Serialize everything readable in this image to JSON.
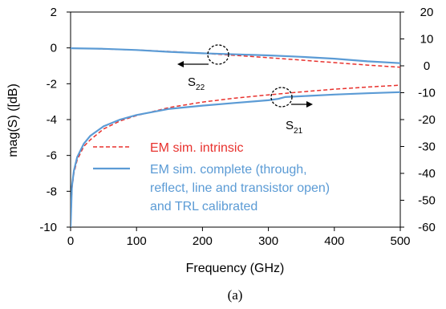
{
  "chart_data": {
    "type": "line",
    "xlabel": "Frequency (GHz)",
    "ylabel": "mag(S) ([dB)",
    "caption": "(a)",
    "xlim": [
      0,
      500
    ],
    "ylim": [
      -10,
      2
    ],
    "y2lim": [
      -60,
      20
    ],
    "xticks": [
      "0",
      "100",
      "200",
      "300",
      "400",
      "500"
    ],
    "yticks": [
      "2",
      "0",
      "-2",
      "-4",
      "-6",
      "-8",
      "-10"
    ],
    "y2ticks": [
      "20",
      "10",
      "0",
      "-10",
      "-20",
      "-30",
      "-40",
      "-50",
      "-60"
    ],
    "grid": false,
    "legend": [
      {
        "label": "EM sim. intrinsic",
        "color": "#e8322e",
        "dash": true
      },
      {
        "label_lines": [
          "EM sim.  complete (through,",
          "reflect, line and transistor open)",
          "and TRL  calibrated"
        ],
        "color": "#5b9bd5",
        "dash": false
      }
    ],
    "annotations": {
      "s22": {
        "main": "S",
        "sub": "22"
      },
      "s21": {
        "main": "S",
        "sub": "21"
      }
    },
    "series": [
      {
        "name": "EM sim. intrinsic (S22)",
        "axis": "left",
        "color": "#e8322e",
        "dash": true,
        "x": [
          0,
          50,
          100,
          150,
          200,
          250,
          300,
          350,
          400,
          450,
          500
        ],
        "y": [
          -0.02,
          -0.06,
          -0.12,
          -0.2,
          -0.3,
          -0.42,
          -0.55,
          -0.68,
          -0.82,
          -0.96,
          -1.08
        ]
      },
      {
        "name": "EM sim. complete (S22)",
        "axis": "left",
        "color": "#5b9bd5",
        "dash": false,
        "x": [
          0,
          50,
          100,
          150,
          200,
          250,
          300,
          350,
          400,
          450,
          500
        ],
        "y": [
          -0.02,
          -0.05,
          -0.12,
          -0.22,
          -0.3,
          -0.36,
          -0.42,
          -0.5,
          -0.6,
          -0.75,
          -0.85
        ]
      },
      {
        "name": "EM sim. intrinsic (S21)",
        "axis": "right",
        "color": "#e8322e",
        "dash": true,
        "x": [
          0,
          2,
          5,
          10,
          20,
          30,
          50,
          75,
          100,
          150,
          200,
          250,
          300,
          350,
          400,
          450,
          500
        ],
        "y": [
          -60,
          -46,
          -40,
          -35,
          -30,
          -27.5,
          -23.5,
          -20.5,
          -18.5,
          -15.5,
          -13.5,
          -12,
          -10.8,
          -9.7,
          -8.7,
          -7.9,
          -7.2
        ]
      },
      {
        "name": "EM sim. complete (S21)",
        "axis": "right",
        "color": "#5b9bd5",
        "dash": false,
        "x": [
          0,
          2,
          5,
          10,
          20,
          30,
          50,
          75,
          100,
          150,
          200,
          250,
          300,
          315,
          325,
          350,
          400,
          450,
          500
        ],
        "y": [
          -60,
          -45,
          -39,
          -34,
          -29,
          -26,
          -22.5,
          -20,
          -18.3,
          -16,
          -14.8,
          -13.8,
          -12.8,
          -12.3,
          -11.6,
          -11.3,
          -10.7,
          -10.2,
          -9.8
        ]
      }
    ]
  }
}
